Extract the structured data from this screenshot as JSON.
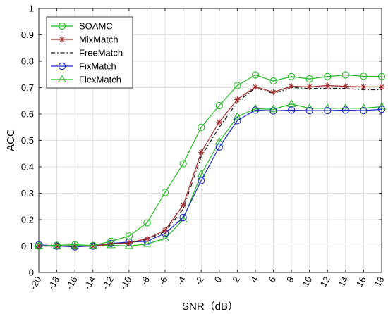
{
  "chart_data": {
    "type": "line",
    "xlabel": "SNR（dB）",
    "ylabel": "ACC",
    "xlim": [
      -20,
      18
    ],
    "ylim": [
      0,
      1
    ],
    "x": [
      -20,
      -18,
      -16,
      -14,
      -12,
      -10,
      -8,
      -6,
      -4,
      -2,
      0,
      2,
      4,
      6,
      8,
      10,
      12,
      14,
      16,
      18
    ],
    "x_tick_labels": [
      "-20",
      "-18",
      "-16",
      "-14",
      "-12",
      "-10",
      "-8",
      "-6",
      "-4",
      "-2",
      "0",
      "2",
      "4",
      "6",
      "8",
      "10",
      "12",
      "14",
      "16",
      "18"
    ],
    "y_ticks": [
      0,
      0.1,
      0.2,
      0.3,
      0.4,
      0.5,
      0.6,
      0.7,
      0.8,
      0.9,
      1
    ],
    "y_tick_labels": [
      "0",
      "0.1",
      "0.2",
      "0.3",
      "0.4",
      "0.5",
      "0.6",
      "0.7",
      "0.8",
      "0.9",
      "1"
    ],
    "grid": true,
    "legend_position": "top-left",
    "series": [
      {
        "name": "SOAMC",
        "color": "#22bb22",
        "marker": "circle",
        "dash": "solid",
        "values": [
          0.1,
          0.103,
          0.105,
          0.102,
          0.118,
          0.138,
          0.188,
          0.303,
          0.412,
          0.55,
          0.632,
          0.708,
          0.748,
          0.725,
          0.742,
          0.733,
          0.742,
          0.748,
          0.743,
          0.742
        ]
      },
      {
        "name": "MixMatch",
        "color": "#a52a2a",
        "marker": "star",
        "dash": "solid",
        "values": [
          0.1,
          0.1,
          0.1,
          0.1,
          0.108,
          0.112,
          0.128,
          0.16,
          0.255,
          0.455,
          0.57,
          0.655,
          0.703,
          0.683,
          0.705,
          0.703,
          0.708,
          0.705,
          0.703,
          0.703
        ]
      },
      {
        "name": "FreeMatch",
        "color": "#111111",
        "marker": "none",
        "dash": "dashdot",
        "values": [
          0.1,
          0.1,
          0.1,
          0.1,
          0.108,
          0.112,
          0.125,
          0.155,
          0.24,
          0.44,
          0.55,
          0.645,
          0.7,
          0.678,
          0.7,
          0.697,
          0.697,
          0.697,
          0.692,
          0.692
        ]
      },
      {
        "name": "FixMatch",
        "color": "#1d27c9",
        "marker": "circle",
        "dash": "solid",
        "values": [
          0.105,
          0.1,
          0.097,
          0.1,
          0.11,
          0.115,
          0.118,
          0.148,
          0.208,
          0.348,
          0.475,
          0.575,
          0.615,
          0.612,
          0.615,
          0.613,
          0.613,
          0.615,
          0.613,
          0.618
        ]
      },
      {
        "name": "FlexMatch",
        "color": "#22bb22",
        "marker": "triangle",
        "dash": "solid",
        "values": [
          0.1,
          0.1,
          0.1,
          0.1,
          0.103,
          0.1,
          0.108,
          0.128,
          0.2,
          0.372,
          0.495,
          0.59,
          0.62,
          0.618,
          0.638,
          0.622,
          0.622,
          0.622,
          0.622,
          0.628
        ]
      }
    ]
  }
}
